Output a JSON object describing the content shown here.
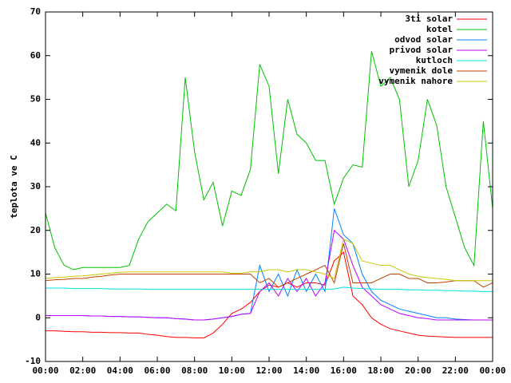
{
  "chart_data": {
    "type": "line",
    "ylabel": "teplota ve C",
    "x": [
      0,
      0.5,
      1,
      1.5,
      2,
      2.5,
      3,
      3.5,
      4,
      4.5,
      5,
      5.5,
      6,
      6.5,
      7,
      7.5,
      8,
      8.5,
      9,
      9.5,
      10,
      10.5,
      11,
      11.5,
      12,
      12.5,
      13,
      13.5,
      14,
      14.5,
      15,
      15.5,
      16,
      16.5,
      17,
      17.5,
      18,
      18.5,
      19,
      19.5,
      20,
      20.5,
      21,
      21.5,
      22,
      22.5,
      23,
      23.5,
      24
    ],
    "xlim": [
      0,
      24
    ],
    "xticks": [
      {
        "value": 0,
        "label": "00:00"
      },
      {
        "value": 2,
        "label": "02:00"
      },
      {
        "value": 4,
        "label": "04:00"
      },
      {
        "value": 6,
        "label": "06:00"
      },
      {
        "value": 8,
        "label": "08:00"
      },
      {
        "value": 10,
        "label": "10:00"
      },
      {
        "value": 12,
        "label": "12:00"
      },
      {
        "value": 14,
        "label": "14:00"
      },
      {
        "value": 16,
        "label": "16:00"
      },
      {
        "value": 18,
        "label": "18:00"
      },
      {
        "value": 20,
        "label": "20:00"
      },
      {
        "value": 22,
        "label": "22:00"
      },
      {
        "value": 24,
        "label": "00:00"
      }
    ],
    "ylim": [
      -10,
      70
    ],
    "yticks": [
      -10,
      0,
      10,
      20,
      30,
      40,
      50,
      60,
      70
    ],
    "legend": "top-right",
    "series": [
      {
        "name": "3ti solar",
        "color": "#ff0000",
        "values": [
          -3,
          -3,
          -3.1,
          -3.2,
          -3.2,
          -3.3,
          -3.3,
          -3.4,
          -3.4,
          -3.5,
          -3.5,
          -3.8,
          -4,
          -4.3,
          -4.5,
          -4.5,
          -4.6,
          -4.6,
          -3.5,
          -1.5,
          1,
          2,
          3.5,
          6,
          7.5,
          7,
          8,
          7,
          8,
          8,
          7.5,
          13,
          15,
          5,
          3,
          0,
          -1.5,
          -2.5,
          -3,
          -3.5,
          -4,
          -4.2,
          -4.3,
          -4.4,
          -4.5,
          -4.5,
          -4.5,
          -4.5,
          -4.5
        ]
      },
      {
        "name": "kotel",
        "color": "#00c000",
        "values": [
          24,
          16,
          12,
          11,
          11.5,
          11.5,
          11.5,
          11.5,
          11.5,
          12,
          18,
          22,
          24,
          26,
          24.5,
          55,
          38,
          27,
          31,
          21,
          29,
          28,
          34,
          58,
          53,
          33,
          50,
          42,
          40,
          36,
          36,
          26,
          32,
          35,
          34.5,
          61,
          53,
          55,
          50,
          30,
          36,
          50,
          44,
          30,
          23,
          16,
          12,
          45,
          25
        ]
      },
      {
        "name": "odvod solar",
        "color": "#0080ff",
        "values": [
          0.5,
          0.5,
          0.5,
          0.5,
          0.5,
          0.4,
          0.4,
          0.3,
          0.3,
          0.2,
          0.2,
          0.1,
          0,
          0,
          -0.2,
          -0.3,
          -0.5,
          -0.5,
          -0.3,
          0,
          0.3,
          0.8,
          1,
          12,
          6,
          10,
          5,
          11,
          6,
          10,
          6,
          25,
          19,
          17,
          10,
          6,
          4,
          3,
          2,
          1.5,
          1,
          0.5,
          0,
          0,
          -0.3,
          -0.4,
          -0.5,
          -0.5,
          -0.5
        ]
      },
      {
        "name": "privod solar",
        "color": "#c000ff",
        "values": [
          0.5,
          0.5,
          0.5,
          0.5,
          0.5,
          0.4,
          0.4,
          0.3,
          0.3,
          0.2,
          0.2,
          0.1,
          0,
          0,
          -0.2,
          -0.3,
          -0.5,
          -0.5,
          -0.3,
          0,
          0.3,
          0.8,
          1,
          6,
          8,
          5,
          9,
          6,
          9,
          5,
          8,
          20,
          18,
          12,
          7,
          5,
          3,
          2,
          1,
          0.5,
          0,
          -0.2,
          -0.5,
          -0.5,
          -0.5,
          -0.5,
          -0.5,
          -0.5,
          -0.5
        ]
      },
      {
        "name": "kutloch",
        "color": "#00e0e0",
        "values": [
          6.8,
          6.8,
          6.8,
          6.7,
          6.7,
          6.7,
          6.7,
          6.6,
          6.6,
          6.6,
          6.6,
          6.5,
          6.5,
          6.5,
          6.5,
          6.5,
          6.5,
          6.5,
          6.5,
          6.5,
          6.5,
          6.5,
          6.5,
          6.5,
          6.5,
          6.5,
          6.5,
          6.5,
          6.5,
          6.5,
          6.5,
          6.6,
          7,
          6.8,
          6.7,
          6.6,
          6.5,
          6.5,
          6.5,
          6.4,
          6.4,
          6.3,
          6.3,
          6.2,
          6.2,
          6.1,
          6.1,
          6,
          6
        ]
      },
      {
        "name": "vymenik dole",
        "color": "#c04000",
        "values": [
          8.5,
          8.7,
          8.8,
          9,
          9,
          9.3,
          9.5,
          9.8,
          10,
          10,
          10,
          10,
          10,
          10,
          10,
          10,
          10,
          10,
          10,
          10,
          10,
          10,
          10,
          8,
          9,
          7,
          8,
          9,
          10,
          11,
          12,
          8,
          17,
          8,
          8,
          8,
          9,
          10,
          10,
          9,
          9,
          8,
          8,
          8.2,
          8.5,
          8.5,
          8.5,
          7,
          8
        ]
      },
      {
        "name": "vymenik nahore",
        "color": "#c8c800",
        "values": [
          9,
          9.2,
          9.3,
          9.5,
          9.6,
          9.8,
          10,
          10.2,
          10.4,
          10.5,
          10.5,
          10.5,
          10.5,
          10.5,
          10.5,
          10.5,
          10.5,
          10.5,
          10.5,
          10.5,
          10.2,
          10.2,
          10.5,
          10.5,
          11,
          11,
          10.5,
          11,
          11,
          10.5,
          10,
          9,
          18,
          17,
          13,
          12.5,
          12,
          12,
          11,
          10,
          9.5,
          9.2,
          9,
          8.8,
          8.5,
          8.5,
          8.5,
          8.5,
          8.5
        ]
      }
    ]
  }
}
